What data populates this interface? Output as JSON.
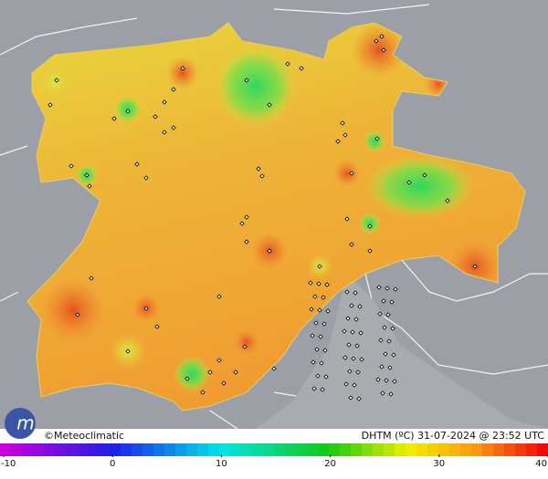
{
  "header": {
    "credit": "©Meteoclimatic",
    "title": "DHTM (ºC) 31-07-2024 @ 23:52 UTC"
  },
  "legend": {
    "range": [
      -10,
      40
    ],
    "ticks": [
      -10,
      0,
      10,
      20,
      30,
      40
    ]
  }
}
